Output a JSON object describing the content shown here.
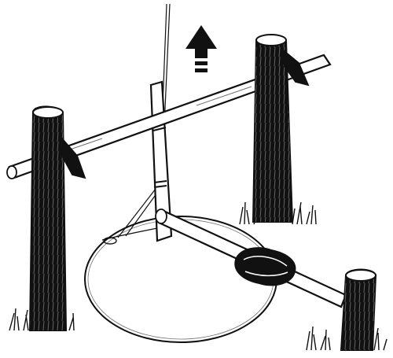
{
  "illustration": {
    "ink_color": "#111111",
    "paper_color": "#ffffff",
    "arrow_direction": "up",
    "icons": {
      "arrow": "up-arrow-icon"
    }
  }
}
